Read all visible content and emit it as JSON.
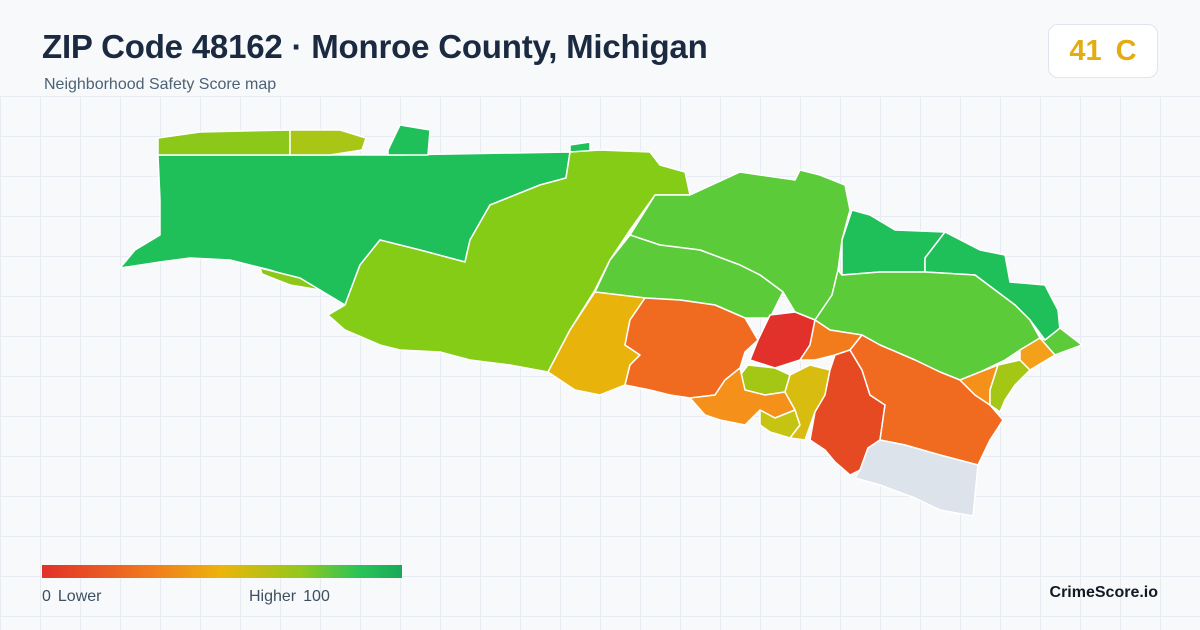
{
  "header": {
    "title": "ZIP Code 48162 · Monroe County, Michigan",
    "subtitle": "Neighborhood Safety Score map"
  },
  "score": {
    "value": "41",
    "grade": "C",
    "color": "#e3ac10"
  },
  "legend": {
    "min": "0",
    "min_label": "Lower",
    "max_label": "Higher",
    "max": "100",
    "colors": [
      "#e2302a",
      "#f07a1e",
      "#ecb50c",
      "#92c81c",
      "#2bc358",
      "#18a95a"
    ]
  },
  "brand": "CrimeScore.io",
  "map": {
    "tract_colors": {
      "west_large": "#1fbf5a",
      "northwest_strip": "#8bc81a",
      "north_strip_yellow": "#a9c516",
      "north_nub": "#1fbf5a",
      "west_thin_strip": "#8bc81a",
      "central_west": "#84cc16",
      "north_central": "#5ccb3a",
      "center_band": "#5ccb3a",
      "northeast_green": "#1fbf5a",
      "east_green": "#1fbf5a",
      "east_large": "#5ccb3a",
      "south_yellow_west": "#e8b40c",
      "south_orange_core": "#f06a20",
      "center_red": "#e2302a",
      "center_orange_ne": "#f27c1c",
      "center_lime_patch": "#a4c716",
      "south_orange_mid": "#f5901a",
      "south_yellow_small": "#c6c412",
      "south_yellow_strip": "#d8bc10",
      "southeast_redorange": "#e64a22",
      "southeast_orange": "#f06a20",
      "east_orange_small": "#f5901a",
      "east_lime_coast": "#a4c716",
      "coast_orange_tip": "#f5a01a",
      "coast_green_tip": "#5ccb3a",
      "no_data_tract": "#dde3ea"
    }
  }
}
